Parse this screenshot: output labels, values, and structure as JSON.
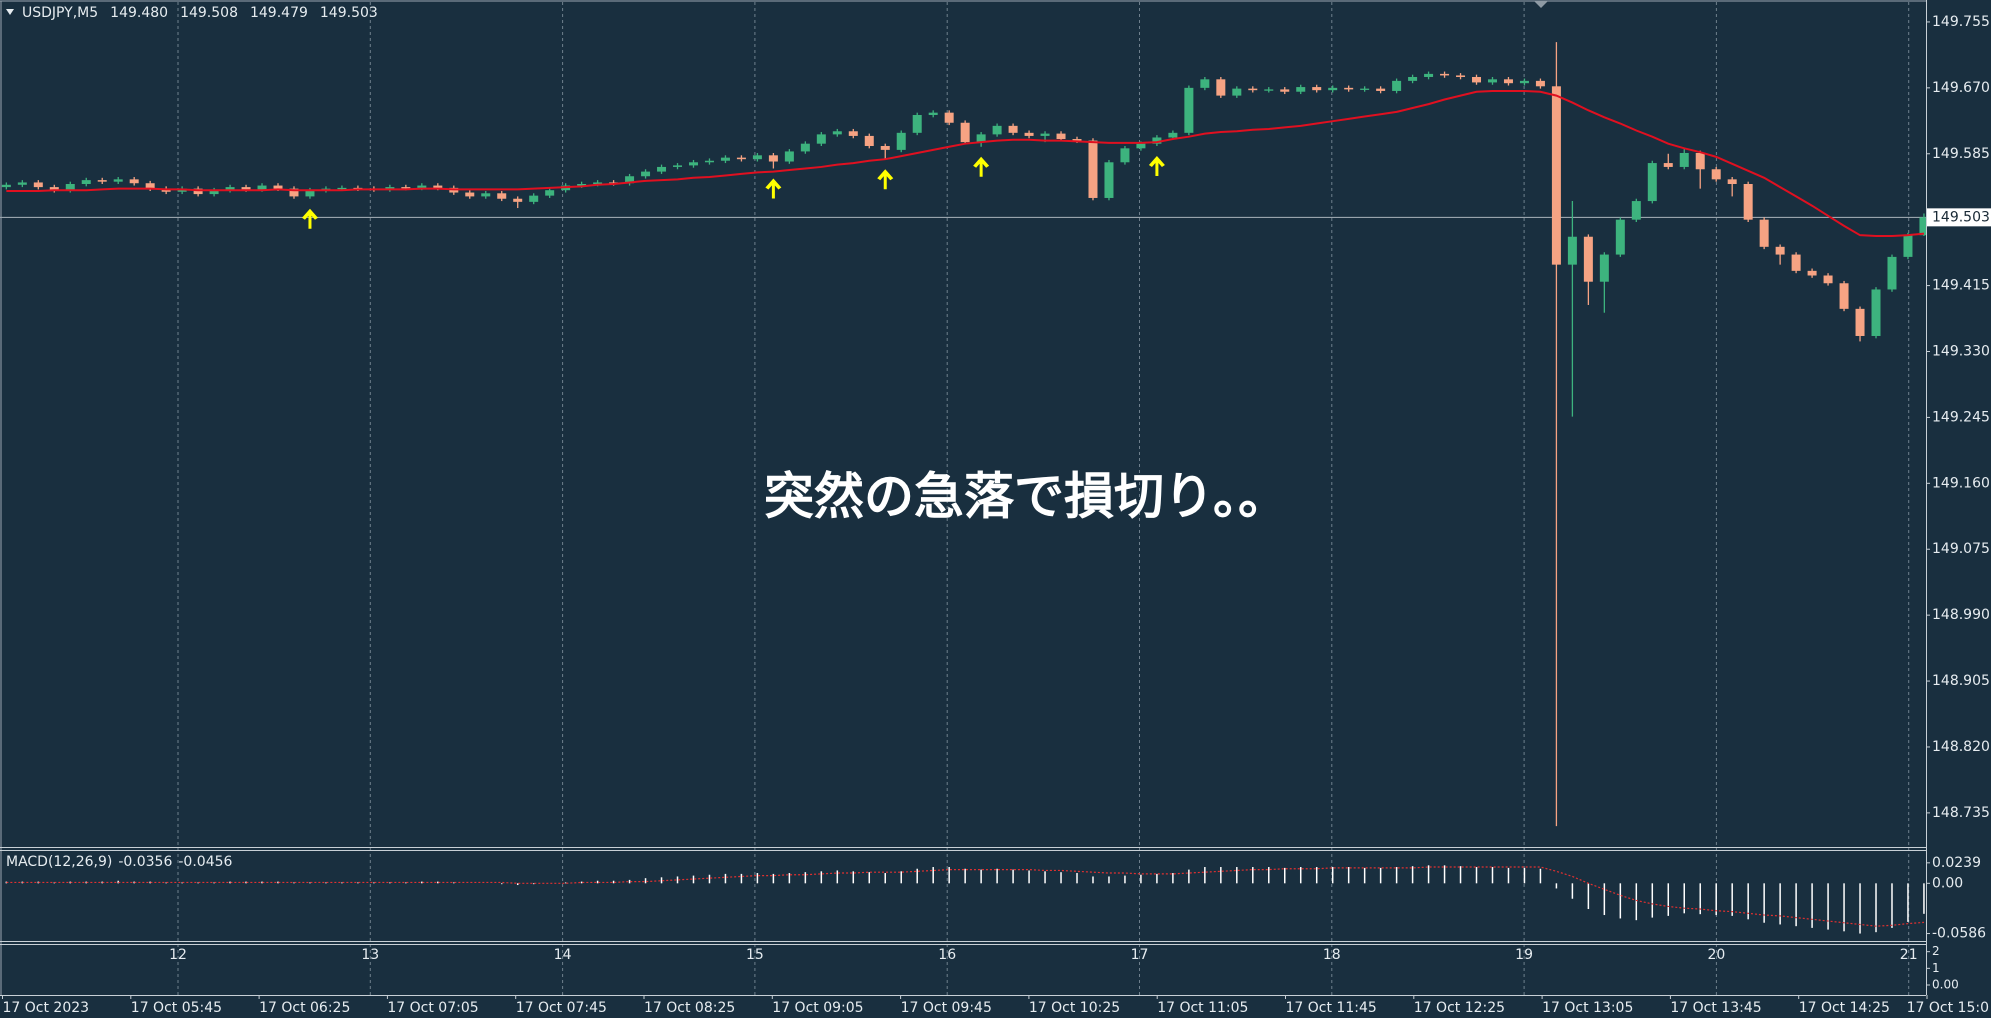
{
  "chart_data": [
    {
      "type": "candlestick",
      "title": "USDJPY,M5",
      "info_values": [
        {
          "value": 149.48,
          "label": "149.480"
        },
        {
          "value": 149.508,
          "label": "149.508"
        },
        {
          "value": 149.479,
          "label": "149.479"
        },
        149.503
      ],
      "up_color": "#3db37e",
      "down_color": "#f6a383",
      "arrow_color": "#ffff00",
      "ylim": [
        148.691,
        149.782
      ],
      "yticks": [
        149.755,
        {
          "value": 149.67,
          "label": "149.670"
        },
        149.585,
        149.415,
        {
          "value": 149.33,
          "label": "149.330"
        },
        149.245,
        {
          "value": 149.16,
          "label": "149.160"
        },
        149.075,
        {
          "value": 148.99,
          "label": "148.990"
        },
        148.905,
        {
          "value": 148.82,
          "label": "148.820"
        },
        148.735
      ],
      "current_price": 149.503,
      "annotation": "突然の急落で損切り。。",
      "signals": [
        19,
        48,
        55,
        61,
        72
      ],
      "ma": {
        "color": "#e01020",
        "values": [
          149.537,
          149.537,
          149.537,
          149.538,
          149.538,
          149.538,
          149.539,
          149.54,
          149.54,
          149.54,
          149.539,
          149.539,
          149.538,
          149.538,
          149.538,
          149.538,
          149.538,
          149.539,
          149.538,
          149.538,
          149.538,
          149.538,
          149.539,
          149.539,
          149.539,
          149.539,
          149.54,
          149.54,
          149.539,
          149.539,
          149.539,
          149.539,
          149.539,
          149.54,
          149.541,
          149.542,
          149.543,
          149.545,
          149.546,
          149.548,
          149.55,
          149.551,
          149.552,
          149.554,
          149.555,
          149.557,
          149.559,
          149.561,
          149.562,
          149.564,
          149.566,
          149.568,
          149.571,
          149.573,
          149.576,
          149.578,
          149.582,
          149.586,
          149.59,
          149.594,
          149.598,
          149.6,
          149.602,
          149.603,
          149.603,
          149.602,
          149.602,
          149.601,
          149.6,
          149.599,
          149.599,
          149.599,
          149.6,
          149.604,
          149.607,
          149.611,
          149.613,
          149.614,
          149.616,
          149.617,
          149.619,
          149.621,
          149.624,
          149.627,
          149.63,
          149.633,
          149.636,
          149.639,
          149.644,
          149.649,
          149.655,
          149.66,
          149.665,
          149.666,
          149.666,
          149.666,
          149.665,
          149.66,
          149.651,
          149.641,
          149.632,
          149.624,
          149.615,
          149.607,
          149.598,
          149.592,
          149.587,
          149.581,
          149.572,
          149.563,
          149.554,
          149.542,
          149.53,
          149.518,
          149.505,
          149.492,
          149.48,
          149.479,
          149.479,
          149.48,
          149.482
        ]
      },
      "ohlc": [
        [
          149.542,
          149.548,
          149.539,
          149.545
        ],
        [
          149.545,
          149.551,
          149.542,
          149.548
        ],
        [
          149.548,
          149.551,
          149.539,
          149.542
        ],
        [
          149.542,
          149.545,
          149.535,
          149.538
        ],
        [
          149.538,
          149.549,
          149.535,
          149.546
        ],
        [
          149.546,
          149.554,
          149.543,
          149.551
        ],
        [
          149.551,
          149.554,
          149.546,
          149.549
        ],
        [
          149.549,
          149.555,
          149.546,
          149.552
        ],
        [
          149.552,
          149.555,
          149.544,
          149.547
        ],
        [
          149.547,
          149.55,
          149.537,
          149.54
        ],
        [
          149.54,
          149.543,
          149.533,
          149.536
        ],
        [
          149.536,
          149.543,
          149.533,
          149.54
        ],
        [
          149.54,
          149.543,
          149.53,
          149.533
        ],
        [
          149.533,
          149.541,
          149.53,
          149.538
        ],
        [
          149.538,
          149.545,
          149.535,
          149.542
        ],
        [
          149.542,
          149.545,
          149.536,
          149.539
        ],
        [
          149.539,
          149.547,
          149.536,
          149.544
        ],
        [
          149.544,
          149.547,
          149.537,
          149.54
        ],
        [
          149.54,
          149.543,
          149.527,
          149.53
        ],
        [
          149.53,
          149.541,
          149.527,
          149.538
        ],
        [
          149.538,
          149.543,
          149.535,
          149.54
        ],
        [
          149.54,
          149.544,
          149.537,
          149.541
        ],
        [
          149.541,
          149.544,
          149.537,
          149.54
        ],
        [
          149.54,
          149.543,
          149.536,
          149.539
        ],
        [
          149.539,
          149.545,
          149.536,
          149.542
        ],
        [
          149.542,
          149.545,
          149.538,
          149.541
        ],
        [
          149.541,
          149.547,
          149.538,
          149.544
        ],
        [
          149.544,
          149.547,
          149.538,
          149.541
        ],
        [
          149.541,
          149.544,
          149.532,
          149.535
        ],
        [
          149.535,
          149.538,
          149.527,
          149.53
        ],
        [
          149.53,
          149.537,
          149.527,
          149.534
        ],
        [
          149.534,
          149.537,
          149.524,
          149.527
        ],
        [
          149.527,
          149.53,
          149.515,
          149.523
        ],
        [
          149.523,
          149.534,
          149.52,
          149.531
        ],
        [
          149.531,
          149.541,
          149.528,
          149.538
        ],
        [
          149.538,
          149.547,
          149.535,
          149.544
        ],
        [
          149.544,
          149.549,
          149.541,
          149.546
        ],
        [
          149.546,
          149.551,
          149.543,
          149.548
        ],
        [
          149.548,
          149.551,
          149.544,
          149.547
        ],
        [
          149.547,
          149.559,
          149.544,
          149.556
        ],
        [
          149.556,
          149.565,
          149.553,
          149.562
        ],
        [
          149.562,
          149.571,
          149.559,
          149.568
        ],
        [
          149.568,
          149.573,
          149.565,
          149.57
        ],
        [
          149.57,
          149.577,
          149.567,
          149.574
        ],
        [
          149.574,
          149.579,
          149.571,
          149.576
        ],
        [
          149.576,
          149.583,
          149.573,
          149.58
        ],
        [
          149.58,
          149.583,
          149.575,
          149.578
        ],
        [
          149.578,
          149.586,
          149.575,
          149.583
        ],
        [
          149.583,
          149.586,
          149.566,
          149.575
        ],
        [
          149.575,
          149.591,
          149.572,
          149.588
        ],
        [
          149.588,
          149.601,
          149.585,
          149.598
        ],
        [
          149.598,
          149.613,
          149.595,
          149.61
        ],
        [
          149.61,
          149.617,
          149.607,
          149.614
        ],
        [
          149.614,
          149.617,
          149.605,
          149.608
        ],
        [
          149.608,
          149.611,
          149.592,
          149.595
        ],
        [
          149.595,
          149.598,
          149.578,
          149.59
        ],
        [
          149.59,
          149.615,
          149.587,
          149.612
        ],
        [
          149.612,
          149.638,
          149.609,
          149.635
        ],
        [
          149.635,
          149.641,
          149.632,
          149.638
        ],
        [
          149.638,
          149.641,
          149.622,
          149.625
        ],
        [
          149.625,
          149.628,
          149.597,
          149.6
        ],
        [
          149.6,
          149.613,
          149.594,
          149.61
        ],
        [
          149.61,
          149.624,
          149.607,
          149.621
        ],
        [
          149.621,
          149.624,
          149.609,
          149.612
        ],
        [
          149.612,
          149.615,
          149.605,
          149.608
        ],
        [
          149.608,
          149.614,
          149.6,
          149.611
        ],
        [
          149.611,
          149.614,
          149.601,
          149.604
        ],
        [
          149.604,
          149.607,
          149.599,
          149.602
        ],
        [
          149.602,
          149.605,
          149.525,
          149.528
        ],
        [
          149.528,
          149.577,
          149.525,
          149.574
        ],
        [
          149.574,
          149.595,
          149.571,
          149.592
        ],
        [
          149.592,
          149.601,
          149.589,
          149.598
        ],
        [
          149.598,
          149.609,
          149.595,
          149.606
        ],
        [
          149.606,
          149.615,
          149.603,
          149.612
        ],
        [
          149.612,
          149.673,
          149.609,
          149.67
        ],
        [
          149.67,
          149.684,
          149.667,
          149.681
        ],
        [
          149.681,
          149.684,
          149.657,
          149.66
        ],
        [
          149.66,
          149.672,
          149.657,
          149.669
        ],
        [
          149.669,
          149.672,
          149.664,
          149.667
        ],
        [
          149.667,
          149.671,
          149.664,
          149.668
        ],
        [
          149.668,
          149.671,
          149.662,
          149.665
        ],
        [
          149.665,
          149.674,
          149.662,
          149.671
        ],
        [
          149.671,
          149.674,
          149.664,
          149.667
        ],
        [
          149.667,
          149.673,
          149.664,
          149.67
        ],
        [
          149.67,
          149.673,
          149.665,
          149.668
        ],
        [
          149.668,
          149.672,
          149.665,
          149.669
        ],
        [
          149.669,
          149.672,
          149.663,
          149.666
        ],
        [
          149.666,
          149.682,
          149.663,
          149.679
        ],
        [
          149.679,
          149.687,
          149.676,
          149.684
        ],
        [
          149.684,
          149.691,
          149.681,
          149.688
        ],
        [
          149.688,
          149.691,
          149.683,
          149.686
        ],
        [
          149.686,
          149.689,
          149.681,
          149.684
        ],
        [
          149.684,
          149.687,
          149.674,
          149.677
        ],
        [
          149.677,
          149.684,
          149.674,
          149.681
        ],
        [
          149.681,
          149.684,
          149.673,
          149.676
        ],
        [
          149.676,
          149.682,
          149.673,
          149.679
        ],
        [
          149.679,
          149.682,
          149.669,
          149.672
        ],
        [
          149.672,
          149.729,
          148.718,
          149.442
        ],
        [
          149.442,
          149.524,
          149.246,
          149.478
        ],
        [
          149.478,
          149.481,
          149.39,
          149.42
        ],
        [
          149.42,
          149.458,
          149.38,
          149.455
        ],
        [
          149.455,
          149.503,
          149.452,
          149.5
        ],
        [
          149.5,
          149.527,
          149.497,
          149.524
        ],
        [
          149.524,
          149.576,
          149.521,
          149.573
        ],
        [
          149.573,
          149.585,
          149.565,
          149.568
        ],
        [
          149.568,
          149.592,
          149.565,
          149.586
        ],
        [
          149.586,
          149.589,
          149.54,
          149.565
        ],
        [
          149.565,
          149.568,
          149.549,
          149.552
        ],
        [
          149.552,
          149.555,
          149.53,
          149.546
        ],
        [
          149.546,
          149.549,
          149.497,
          149.5
        ],
        [
          149.5,
          149.503,
          149.462,
          149.465
        ],
        [
          149.465,
          149.468,
          149.442,
          149.455
        ],
        [
          149.455,
          149.458,
          149.431,
          149.434
        ],
        [
          149.434,
          149.437,
          149.425,
          149.428
        ],
        [
          149.428,
          149.431,
          149.415,
          149.418
        ],
        [
          149.418,
          149.421,
          149.382,
          149.385
        ],
        [
          149.385,
          149.388,
          149.343,
          149.35
        ],
        [
          149.35,
          149.413,
          149.347,
          149.41
        ],
        [
          149.41,
          149.455,
          149.407,
          149.452
        ],
        [
          149.452,
          149.483,
          149.449,
          149.48
        ],
        [
          149.48,
          149.508,
          149.479,
          149.503
        ]
      ]
    },
    {
      "type": "macd",
      "title": "MACD(12,26,9)",
      "info_values": [
        -0.0356,
        -0.0456
      ],
      "hist_color": "#ffffff",
      "signal_color": "#e03030",
      "ylim": [
        -0.0673,
        0.0377
      ],
      "yticks": [
        0.0239,
        {
          "value": 0,
          "label": "0.00"
        },
        -0.0586
      ],
      "histogram": [
        0.002,
        0.002,
        0.002,
        0.001,
        0.002,
        0.002,
        0.002,
        0.003,
        0.002,
        0.002,
        0.001,
        0.001,
        0.001,
        0.001,
        0.002,
        0.002,
        0.002,
        0.002,
        0.001,
        0.001,
        0.001,
        0.001,
        0.001,
        0.001,
        0.001,
        0.001,
        0.002,
        0.002,
        0.001,
        0,
        0,
        -0.001,
        -0.002,
        -0.001,
        0,
        0.001,
        0.002,
        0.003,
        0.003,
        0.004,
        0.006,
        0.007,
        0.008,
        0.009,
        0.01,
        0.011,
        0.011,
        0.012,
        0.011,
        0.012,
        0.013,
        0.014,
        0.015,
        0.014,
        0.013,
        0.012,
        0.014,
        0.017,
        0.019,
        0.019,
        0.017,
        0.016,
        0.017,
        0.016,
        0.015,
        0.014,
        0.013,
        0.012,
        0.008,
        0.008,
        0.009,
        0.01,
        0.011,
        0.012,
        0.016,
        0.019,
        0.019,
        0.019,
        0.019,
        0.019,
        0.018,
        0.019,
        0.019,
        0.019,
        0.019,
        0.018,
        0.018,
        0.019,
        0.02,
        0.021,
        0.021,
        0.02,
        0.019,
        0.019,
        0.018,
        0.018,
        0.017,
        -0.006,
        -0.018,
        -0.03,
        -0.037,
        -0.041,
        -0.043,
        -0.04,
        -0.038,
        -0.035,
        -0.036,
        -0.037,
        -0.038,
        -0.042,
        -0.046,
        -0.048,
        -0.05,
        -0.052,
        -0.054,
        -0.056,
        -0.0586,
        -0.057,
        -0.052,
        -0.045,
        -0.0356
      ],
      "signal": [
        0.001,
        0.001,
        0.001,
        0.001,
        0.001,
        0.001,
        0.001,
        0.001,
        0.001,
        0.001,
        0.001,
        0.001,
        0.001,
        0.001,
        0.001,
        0.001,
        0.001,
        0.001,
        0.001,
        0.001,
        0.001,
        0.001,
        0.001,
        0.001,
        0.001,
        0.001,
        0.001,
        0.001,
        0.001,
        0.001,
        0.001,
        0.001,
        0,
        0,
        0,
        0,
        0.001,
        0.001,
        0.001,
        0.002,
        0.002,
        0.003,
        0.004,
        0.005,
        0.006,
        0.007,
        0.008,
        0.009,
        0.009,
        0.01,
        0.01,
        0.011,
        0.012,
        0.012,
        0.013,
        0.013,
        0.013,
        0.014,
        0.015,
        0.016,
        0.016,
        0.016,
        0.016,
        0.016,
        0.016,
        0.015,
        0.015,
        0.014,
        0.013,
        0.012,
        0.012,
        0.011,
        0.011,
        0.011,
        0.012,
        0.013,
        0.014,
        0.015,
        0.016,
        0.016,
        0.017,
        0.017,
        0.017,
        0.018,
        0.018,
        0.018,
        0.018,
        0.018,
        0.018,
        0.019,
        0.019,
        0.019,
        0.019,
        0.019,
        0.019,
        0.019,
        0.019,
        0.014,
        0.008,
        0,
        -0.007,
        -0.014,
        -0.02,
        -0.024,
        -0.027,
        -0.029,
        -0.03,
        -0.032,
        -0.033,
        -0.035,
        -0.037,
        -0.038,
        -0.04,
        -0.042,
        -0.044,
        -0.046,
        -0.048,
        -0.05,
        -0.049,
        -0.047,
        -0.0456
      ]
    },
    {
      "type": "hours",
      "categories": [
        "12",
        "13",
        "14",
        "15",
        "16",
        "17",
        "18",
        "19",
        "20",
        "21"
      ],
      "ylim": [
        -0.6,
        2.4
      ],
      "yticks": [
        2,
        1,
        {
          "value": 0,
          "label": "0.00"
        }
      ]
    }
  ],
  "time_axis": [
    "17 Oct 2023",
    "17 Oct 05:45",
    "17 Oct 06:25",
    "17 Oct 07:05",
    "17 Oct 07:45",
    "17 Oct 08:25",
    "17 Oct 09:05",
    "17 Oct 09:45",
    "17 Oct 10:25",
    "17 Oct 11:05",
    "17 Oct 11:45",
    "17 Oct 12:25",
    "17 Oct 13:05",
    "17 Oct 13:45",
    "17 Oct 14:25",
    "17 Oct 15:0"
  ]
}
